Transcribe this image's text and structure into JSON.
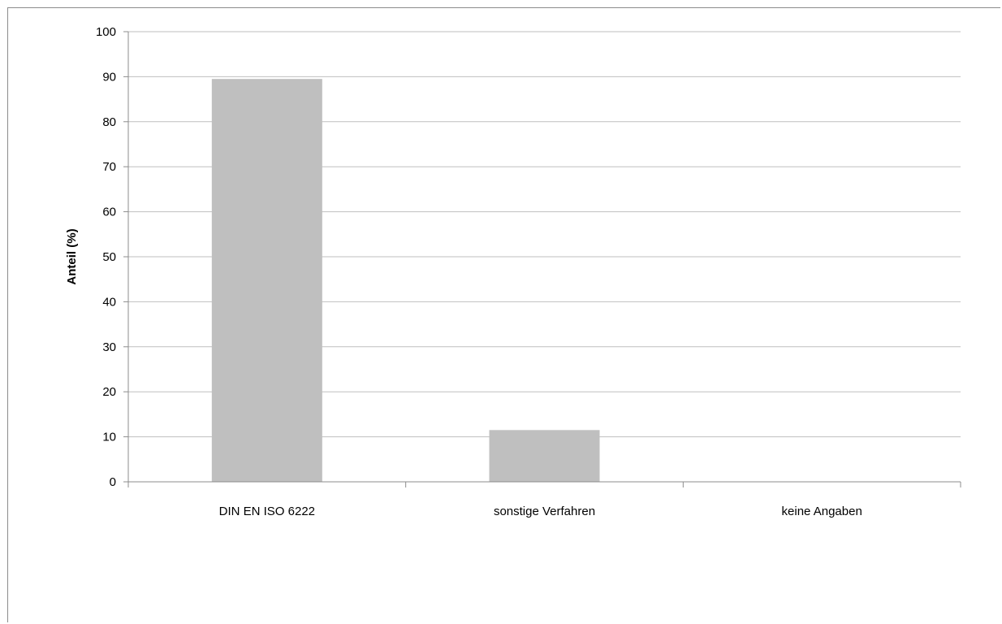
{
  "chart_data": {
    "type": "bar",
    "categories": [
      "DIN EN ISO 6222",
      "sonstige Verfahren",
      "keine Angaben"
    ],
    "values": [
      89.5,
      11.5,
      0
    ],
    "title": "",
    "xlabel": "",
    "ylabel": "Anteil (%)",
    "ylim": [
      0,
      100
    ],
    "yticks": [
      0,
      10,
      20,
      30,
      40,
      50,
      60,
      70,
      80,
      90,
      100
    ],
    "grid": true,
    "legend": "none",
    "bar_color": "#bfbfbf",
    "grid_color": "#bfbfbf"
  }
}
